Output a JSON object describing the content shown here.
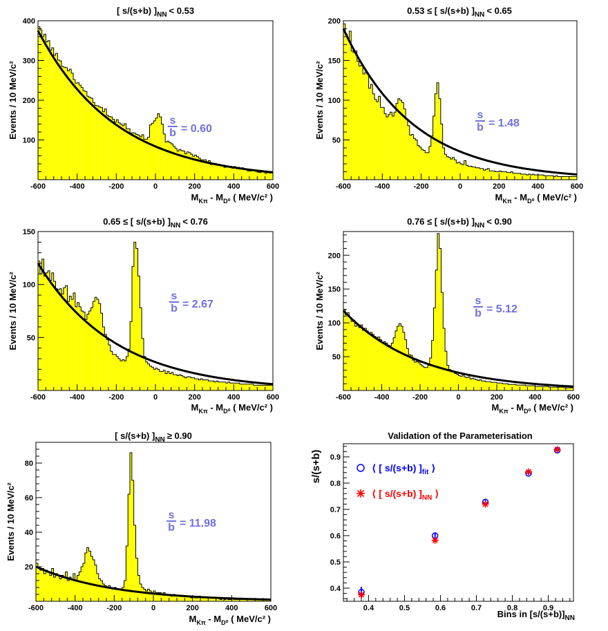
{
  "colors": {
    "fill": "#ffff00",
    "outline": "#000000",
    "fit_curve": "#000000",
    "ratio_text": "#6f6fe0",
    "fit_marker": "#0000ff",
    "nn_marker": "#ff0000"
  },
  "chart_data": [
    {
      "type": "bar",
      "title": "[ s/(s+b) ]",
      "title_subscript": "NN",
      "title_condition": "< 0.53",
      "ylabel": "Events / 10 MeV/c²",
      "xlabel": "M",
      "xlabel_sub1": "Kπ",
      "xlabel_mid": " - M",
      "xlabel_sub2": "D⁰",
      "xlabel_unit": " ( MeV/c² )",
      "ratio_num": "s",
      "ratio_den": "b",
      "ratio_value": "= 0.60",
      "xlim": [
        -600,
        600
      ],
      "ylim": [
        0,
        400
      ],
      "xticks": [
        "-600",
        "-400",
        "-200",
        "0",
        "200",
        "400",
        "600"
      ],
      "yticks": [
        "100",
        "200",
        "300",
        "400"
      ],
      "fit": {
        "amplitude": 375,
        "decay": 0.0025,
        "offset": 0
      },
      "bin_width": 10,
      "values": [
        385,
        377,
        360,
        366,
        347,
        350,
        326,
        332,
        313,
        318,
        301,
        299,
        285,
        283,
        282,
        274,
        278,
        268,
        252,
        243,
        244,
        238,
        232,
        224,
        222,
        210,
        207,
        205,
        194,
        187,
        186,
        183,
        182,
        171,
        178,
        162,
        159,
        158,
        152,
        145,
        151,
        143,
        140,
        136,
        141,
        128,
        128,
        117,
        118,
        117,
        114,
        112,
        108,
        113,
        102,
        102,
        107,
        138,
        142,
        148,
        155,
        166,
        158,
        140,
        115,
        95,
        97,
        93,
        90,
        84,
        79,
        72,
        76,
        73,
        72,
        65,
        70,
        68,
        64,
        59,
        62,
        58,
        54,
        50,
        50,
        50,
        44,
        48,
        38,
        40,
        41,
        38,
        39,
        37,
        37,
        31,
        34,
        33,
        34,
        29,
        33,
        30,
        31,
        29,
        30,
        27,
        25,
        22,
        22,
        23,
        23,
        21,
        19,
        18,
        20,
        19,
        16,
        19,
        17,
        17
      ]
    },
    {
      "type": "bar",
      "title": "0.53 ≤ [ s/(s+b) ]",
      "title_subscript": "NN",
      "title_condition": "< 0.65",
      "ylabel": "Events / 10 MeV/c²",
      "xlabel": "M",
      "xlabel_sub1": "Kπ",
      "xlabel_mid": " - M",
      "xlabel_sub2": "D⁰",
      "xlabel_unit": " ( MeV/c² )",
      "ratio_num": "s",
      "ratio_den": "b",
      "ratio_value": "= 1.48",
      "xlim": [
        -600,
        600
      ],
      "ylim": [
        0,
        200
      ],
      "xticks": [
        "-600",
        "-400",
        "-200",
        "0",
        "200",
        "400",
        "600"
      ],
      "yticks": [
        "50",
        "100",
        "150",
        "200"
      ],
      "fit": {
        "amplitude": 190,
        "decay": 0.0028,
        "offset": 0
      },
      "bin_width": 10,
      "values": [
        196,
        183,
        177,
        187,
        162,
        160,
        162,
        149,
        143,
        144,
        133,
        135,
        133,
        115,
        120,
        108,
        101,
        98,
        105,
        91,
        91,
        83,
        79,
        82,
        85,
        80,
        85,
        96,
        102,
        100,
        97,
        89,
        76,
        68,
        56,
        57,
        52,
        50,
        43,
        41,
        38,
        37,
        34,
        34,
        42,
        55,
        80,
        108,
        122,
        102,
        70,
        40,
        32,
        29,
        28,
        26,
        28,
        25,
        21,
        22,
        20,
        19,
        24,
        18,
        17,
        17,
        16,
        16,
        15,
        15,
        14,
        14,
        12,
        13,
        14,
        11,
        11,
        11,
        10,
        10,
        11,
        10,
        10,
        10,
        9,
        9,
        10,
        8,
        8,
        8,
        8,
        7,
        7,
        7,
        6,
        7,
        6,
        7,
        6,
        6,
        6,
        6,
        6,
        5,
        5,
        5,
        5,
        5,
        4,
        5,
        4,
        4,
        4,
        4,
        4,
        4,
        4,
        4,
        4,
        4
      ]
    },
    {
      "type": "bar",
      "title": "0.65 ≤ [ s/(s+b) ]",
      "title_subscript": "NN",
      "title_condition": "< 0.76",
      "ylabel": "Events / 10 MeV/c²",
      "xlabel": "M",
      "xlabel_sub1": "Kπ",
      "xlabel_mid": " - M",
      "xlabel_sub2": "D⁰",
      "xlabel_unit": " ( MeV/c² )",
      "ratio_num": "s",
      "ratio_den": "b",
      "ratio_value": "= 2.67",
      "xlim": [
        -600,
        600
      ],
      "ylim": [
        0,
        150
      ],
      "xticks": [
        "-600",
        "-400",
        "-200",
        "0",
        "200",
        "400",
        "600"
      ],
      "yticks": [
        "50",
        "100",
        "150"
      ],
      "fit": {
        "amplitude": 120,
        "decay": 0.0025,
        "offset": 0
      },
      "bin_width": 10,
      "values": [
        122,
        110,
        124,
        108,
        111,
        113,
        104,
        111,
        103,
        96,
        95,
        96,
        91,
        97,
        99,
        84,
        89,
        86,
        92,
        79,
        83,
        79,
        75,
        74,
        67,
        72,
        75,
        78,
        84,
        88,
        86,
        82,
        73,
        60,
        53,
        48,
        43,
        37,
        34,
        34,
        32,
        30,
        28,
        29,
        28,
        32,
        39,
        65,
        117,
        140,
        134,
        108,
        78,
        49,
        32,
        27,
        25,
        23,
        22,
        20,
        21,
        20,
        18,
        18,
        19,
        16,
        18,
        16,
        17,
        15,
        15,
        14,
        15,
        14,
        13,
        12,
        13,
        13,
        12,
        12,
        11,
        11,
        10,
        11,
        10,
        10,
        10,
        9,
        9,
        9,
        8,
        9,
        8,
        8,
        8,
        8,
        7,
        8,
        7,
        7,
        7,
        7,
        7,
        6,
        6,
        6,
        6,
        6,
        6,
        6,
        5,
        5,
        5,
        5,
        5,
        5,
        5,
        5,
        5,
        5
      ]
    },
    {
      "type": "bar",
      "title": "0.76 ≤ [ s/(s+b) ]",
      "title_subscript": "NN",
      "title_condition": "< 0.90",
      "ylabel": "Events / 10 MeV/c²",
      "xlabel": "M",
      "xlabel_sub1": "Kπ",
      "xlabel_mid": " - M",
      "xlabel_sub2": "D⁰",
      "xlabel_unit": " ( MeV/c² )",
      "ratio_num": "s",
      "ratio_den": "b",
      "ratio_value": "= 5.12",
      "xlim": [
        -600,
        600
      ],
      "ylim": [
        0,
        235
      ],
      "xticks": [
        "-600",
        "-400",
        "-200",
        "0",
        "200",
        "400",
        "600"
      ],
      "yticks": [
        "50",
        "100",
        "150",
        "200"
      ],
      "fit": {
        "amplitude": 118,
        "decay": 0.0025,
        "offset": 0
      },
      "bin_width": 10,
      "values": [
        120,
        112,
        115,
        108,
        102,
        104,
        95,
        98,
        93,
        97,
        89,
        92,
        88,
        84,
        86,
        83,
        80,
        78,
        79,
        75,
        71,
        72,
        70,
        67,
        66,
        70,
        78,
        88,
        95,
        99,
        95,
        86,
        75,
        62,
        53,
        52,
        45,
        42,
        43,
        41,
        38,
        36,
        34,
        34,
        37,
        48,
        74,
        122,
        178,
        232,
        210,
        145,
        92,
        58,
        37,
        31,
        28,
        27,
        25,
        24,
        22,
        21,
        23,
        20,
        19,
        20,
        17,
        18,
        17,
        16,
        15,
        16,
        14,
        14,
        13,
        13,
        13,
        12,
        12,
        12,
        11,
        11,
        11,
        10,
        10,
        10,
        9,
        9,
        9,
        9,
        8,
        8,
        8,
        8,
        8,
        7,
        7,
        7,
        7,
        7,
        6,
        6,
        6,
        6,
        6,
        6,
        6,
        5,
        5,
        5,
        5,
        5,
        5,
        5,
        5,
        4,
        4,
        4,
        4,
        4
      ]
    },
    {
      "type": "bar",
      "title": "[ s/(s+b) ]",
      "title_subscript": "NN",
      "title_condition": "≥ 0.90",
      "ylabel": "Events / 10 MeV/c²",
      "xlabel": "M",
      "xlabel_sub1": "Kπ",
      "xlabel_mid": " - M",
      "xlabel_sub2": "D⁰",
      "xlabel_unit": " ( MeV/c² )",
      "ratio_num": "s",
      "ratio_den": "b",
      "ratio_value": "= 11.98",
      "xlim": [
        -600,
        600
      ],
      "ylim": [
        0,
        92
      ],
      "xticks": [
        "-600",
        "-400",
        "-200",
        "0",
        "200",
        "400",
        "600"
      ],
      "yticks": [
        "20",
        "40",
        "60",
        "80"
      ],
      "fit": {
        "amplitude": 20,
        "decay": 0.0025,
        "offset": 0
      },
      "bin_width": 10,
      "values": [
        22,
        20,
        18,
        19,
        16,
        18,
        17,
        15,
        19,
        14,
        16,
        15,
        13,
        15,
        14,
        17,
        12,
        14,
        13,
        16,
        12,
        15,
        17,
        20,
        22,
        28,
        31,
        29,
        26,
        24,
        21,
        16,
        13,
        12,
        10,
        9,
        8,
        9,
        8,
        7,
        8,
        7,
        7,
        7,
        8,
        12,
        32,
        62,
        86,
        70,
        44,
        25,
        15,
        10,
        8,
        7,
        6,
        7,
        6,
        5,
        6,
        5,
        5,
        5,
        4,
        5,
        4,
        4,
        4,
        3,
        4,
        3,
        3,
        3,
        3,
        3,
        3,
        3,
        3,
        2,
        3,
        2,
        2,
        3,
        2,
        2,
        2,
        2,
        2,
        2,
        2,
        2,
        2,
        2,
        1,
        2,
        1,
        2,
        1,
        1,
        2,
        1,
        1,
        1,
        1,
        1,
        1,
        1,
        1,
        1,
        1,
        1,
        1,
        1,
        1,
        1,
        1,
        1,
        1,
        1
      ]
    },
    {
      "type": "scatter",
      "title": "Validation of the Parameterisation",
      "ylabel": "s/(s+b)",
      "xlabel": "Bins in [s/(s+b)]",
      "xlabel_subscript": "NN",
      "xlim": [
        0.33,
        0.97
      ],
      "ylim": [
        0.35,
        0.95
      ],
      "xticks": [
        "0.4",
        "0.5",
        "0.6",
        "0.7",
        "0.8",
        "0.9"
      ],
      "yticks": [
        "0.4",
        "0.5",
        "0.6",
        "0.7",
        "0.8",
        "0.9"
      ],
      "series": [
        {
          "name": "⟨ [ s/(s+b) ]",
          "name_subscript": "fit",
          "name_close": " ⟩",
          "marker": "circle",
          "x": [
            0.38,
            0.585,
            0.725,
            0.845,
            0.925
          ],
          "y": [
            0.385,
            0.6,
            0.728,
            0.837,
            0.925
          ],
          "err": [
            0.02,
            0.012,
            0.008,
            0.005,
            0.005
          ]
        },
        {
          "name": "⟨ [ s/(s+b) ]",
          "name_subscript": "NN",
          "name_close": " ⟩",
          "marker": "star",
          "x": [
            0.38,
            0.585,
            0.725,
            0.845,
            0.925
          ],
          "y": [
            0.375,
            0.582,
            0.72,
            0.843,
            0.928
          ]
        }
      ]
    }
  ]
}
